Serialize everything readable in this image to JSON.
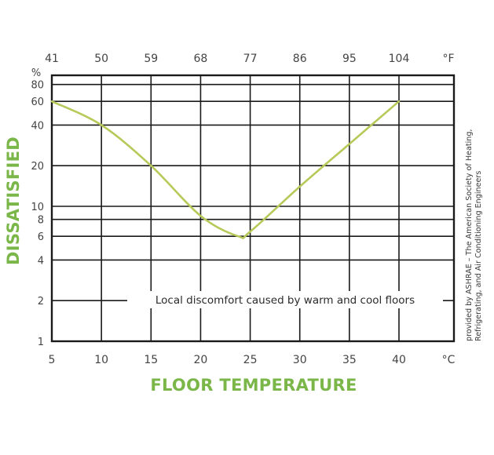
{
  "chart_data": {
    "type": "line",
    "title": "Local discomfort caused by warm and cool floors",
    "xlabel": "FLOOR TEMPERATURE",
    "ylabel": "DISSATISFIED",
    "y_unit": "%",
    "y_scale": "log",
    "ylim": [
      1,
      100
    ],
    "xlim": [
      5,
      45
    ],
    "grid": true,
    "x_primary_unit": "°C",
    "x_secondary_unit": "°F",
    "x_ticks_c": [
      "5",
      "10",
      "15",
      "20",
      "25",
      "30",
      "35",
      "40"
    ],
    "x_ticks_f": [
      "41",
      "50",
      "59",
      "68",
      "77",
      "86",
      "95",
      "104"
    ],
    "y_ticks": [
      "1",
      "2",
      "4",
      "6",
      "8",
      "10",
      "20",
      "40",
      "60",
      "80"
    ],
    "series": [
      {
        "name": "Percent dissatisfied",
        "color": "#b8c95a",
        "x": [
          5,
          10,
          15,
          20,
          23.8,
          25,
          30,
          35,
          40
        ],
        "values": [
          60,
          40,
          20,
          8.5,
          6,
          6.5,
          14,
          29,
          60
        ]
      }
    ],
    "annotations": [
      "Local discomfort caused by warm and cool floors",
      "provided by ASHRAE - The American Society of Heating, Refrigerating, and Air Conditioning Engineers"
    ]
  },
  "labels": {
    "unit_percent": "%",
    "unit_f": "°F",
    "unit_c": "°C",
    "ylabel": "DISSATISFIED",
    "xlabel": "FLOOR TEMPERATURE",
    "annotation": "Local discomfort caused by warm and cool floors",
    "credit_line1": "provided by ASHRAE – The American Society of Heating,",
    "credit_line2": "Refrigerating, and Air Conditioning Engineers"
  },
  "colors": {
    "accent_green": "#7ab648",
    "curve": "#b8c95a",
    "grid": "#1a1a1a",
    "tick_text": "#444444"
  }
}
